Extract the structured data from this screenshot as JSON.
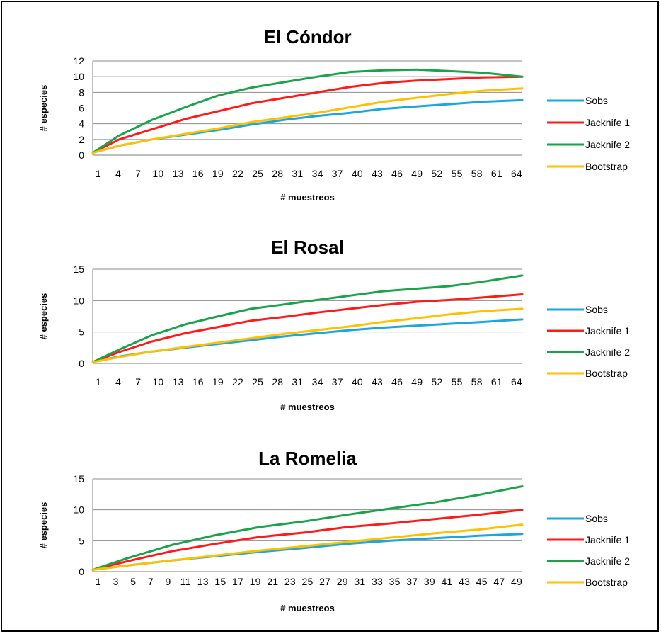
{
  "chart_data": [
    {
      "type": "line",
      "title": "El Cóndor",
      "xlabel": "# muestreos",
      "ylabel": "# especies",
      "ylim": [
        0,
        12
      ],
      "yticks": [
        0,
        2,
        4,
        6,
        8,
        10,
        12
      ],
      "x_range": [
        1,
        66
      ],
      "x_tick_labels": [
        "1",
        "4",
        "7",
        "10",
        "13",
        "16",
        "19",
        "22",
        "25",
        "28",
        "31",
        "34",
        "37",
        "40",
        "43",
        "46",
        "49",
        "52",
        "55",
        "58",
        "61",
        "64"
      ],
      "grid": true,
      "legend_position": "right",
      "series": [
        {
          "name": "Sobs",
          "color": "#1aa8dc",
          "x": [
            1,
            5,
            10,
            15,
            20,
            25,
            30,
            35,
            40,
            45,
            50,
            55,
            60,
            66
          ],
          "values": [
            0.3,
            1.2,
            2.0,
            2.6,
            3.2,
            3.9,
            4.5,
            5.0,
            5.4,
            5.9,
            6.2,
            6.5,
            6.8,
            7.0
          ]
        },
        {
          "name": "Jacknife 1",
          "color": "#ff1a1a",
          "x": [
            1,
            5,
            10,
            15,
            20,
            25,
            30,
            35,
            40,
            45,
            50,
            55,
            60,
            66
          ],
          "values": [
            0.3,
            2.0,
            3.3,
            4.6,
            5.6,
            6.6,
            7.3,
            8.0,
            8.7,
            9.2,
            9.5,
            9.7,
            9.9,
            10.0
          ]
        },
        {
          "name": "Jacknife 2",
          "color": "#1aa34a",
          "x": [
            1,
            5,
            10,
            15,
            20,
            25,
            30,
            35,
            40,
            45,
            50,
            55,
            60,
            66
          ],
          "values": [
            0.3,
            2.5,
            4.5,
            6.1,
            7.6,
            8.6,
            9.3,
            10.0,
            10.6,
            10.8,
            10.9,
            10.7,
            10.5,
            10.0
          ]
        },
        {
          "name": "Bootstrap",
          "color": "#ffc000",
          "x": [
            1,
            5,
            10,
            15,
            20,
            25,
            30,
            35,
            40,
            45,
            50,
            55,
            60,
            66
          ],
          "values": [
            0.3,
            1.2,
            2.0,
            2.7,
            3.4,
            4.2,
            4.8,
            5.4,
            6.1,
            6.8,
            7.3,
            7.8,
            8.2,
            8.5
          ]
        }
      ]
    },
    {
      "type": "line",
      "title": "El Rosal",
      "xlabel": "# muestreos",
      "ylabel": "# especies",
      "ylim": [
        0,
        15
      ],
      "yticks": [
        0,
        5,
        10,
        15
      ],
      "x_range": [
        1,
        66
      ],
      "x_tick_labels": [
        "1",
        "4",
        "7",
        "10",
        "13",
        "16",
        "19",
        "22",
        "25",
        "28",
        "31",
        "34",
        "37",
        "40",
        "43",
        "46",
        "49",
        "52",
        "55",
        "58",
        "61",
        "64"
      ],
      "grid": true,
      "legend_position": "right",
      "series": [
        {
          "name": "Sobs",
          "color": "#1aa8dc",
          "x": [
            1,
            5,
            10,
            15,
            20,
            25,
            30,
            35,
            40,
            45,
            50,
            55,
            60,
            66
          ],
          "values": [
            0.2,
            1.1,
            1.9,
            2.5,
            3.1,
            3.7,
            4.3,
            4.8,
            5.3,
            5.7,
            6.0,
            6.3,
            6.6,
            7.0
          ]
        },
        {
          "name": "Jacknife 1",
          "color": "#ff1a1a",
          "x": [
            1,
            5,
            10,
            15,
            20,
            25,
            30,
            35,
            40,
            45,
            50,
            55,
            60,
            66
          ],
          "values": [
            0.2,
            1.8,
            3.5,
            4.8,
            5.8,
            6.8,
            7.4,
            8.1,
            8.7,
            9.3,
            9.8,
            10.1,
            10.5,
            11.0
          ]
        },
        {
          "name": "Jacknife 2",
          "color": "#1aa34a",
          "x": [
            1,
            5,
            10,
            15,
            20,
            25,
            30,
            35,
            40,
            45,
            50,
            55,
            60,
            66
          ],
          "values": [
            0.2,
            2.2,
            4.5,
            6.2,
            7.5,
            8.7,
            9.4,
            10.1,
            10.8,
            11.5,
            11.9,
            12.3,
            13.0,
            14.0
          ]
        },
        {
          "name": "Bootstrap",
          "color": "#ffc000",
          "x": [
            1,
            5,
            10,
            15,
            20,
            25,
            30,
            35,
            40,
            45,
            50,
            55,
            60,
            66
          ],
          "values": [
            0.2,
            1.0,
            1.9,
            2.6,
            3.3,
            4.0,
            4.7,
            5.3,
            5.9,
            6.6,
            7.2,
            7.8,
            8.3,
            8.7
          ]
        }
      ]
    },
    {
      "type": "line",
      "title": "La Romelia",
      "xlabel": "# muestreos",
      "ylabel": "# especies",
      "ylim": [
        0,
        15
      ],
      "yticks": [
        0,
        5,
        10,
        15
      ],
      "x_range": [
        1,
        50
      ],
      "x_tick_labels": [
        "1",
        "3",
        "5",
        "7",
        "9",
        "11",
        "13",
        "15",
        "17",
        "19",
        "21",
        "23",
        "25",
        "27",
        "29",
        "31",
        "33",
        "35",
        "37",
        "39",
        "41",
        "43",
        "45",
        "47",
        "49"
      ],
      "grid": true,
      "legend_position": "right",
      "series": [
        {
          "name": "Sobs",
          "color": "#1aa8dc",
          "x": [
            1,
            5,
            10,
            15,
            20,
            25,
            30,
            35,
            40,
            45,
            50
          ],
          "values": [
            0.3,
            1.0,
            1.8,
            2.5,
            3.2,
            3.8,
            4.5,
            5.0,
            5.4,
            5.8,
            6.1
          ]
        },
        {
          "name": "Jacknife 1",
          "color": "#ff1a1a",
          "x": [
            1,
            5,
            10,
            15,
            20,
            25,
            30,
            35,
            40,
            45,
            50
          ],
          "values": [
            0.3,
            1.7,
            3.3,
            4.5,
            5.6,
            6.3,
            7.2,
            7.8,
            8.5,
            9.2,
            10.0
          ]
        },
        {
          "name": "Jacknife 2",
          "color": "#1aa34a",
          "x": [
            1,
            5,
            10,
            15,
            20,
            25,
            30,
            35,
            40,
            45,
            50
          ],
          "values": [
            0.3,
            2.2,
            4.3,
            5.9,
            7.2,
            8.1,
            9.2,
            10.2,
            11.2,
            12.4,
            13.8
          ]
        },
        {
          "name": "Bootstrap",
          "color": "#ffc000",
          "x": [
            1,
            5,
            10,
            15,
            20,
            25,
            30,
            35,
            40,
            45,
            50
          ],
          "values": [
            0.3,
            1.0,
            1.8,
            2.6,
            3.4,
            4.1,
            4.8,
            5.5,
            6.2,
            6.8,
            7.6
          ]
        }
      ]
    }
  ]
}
